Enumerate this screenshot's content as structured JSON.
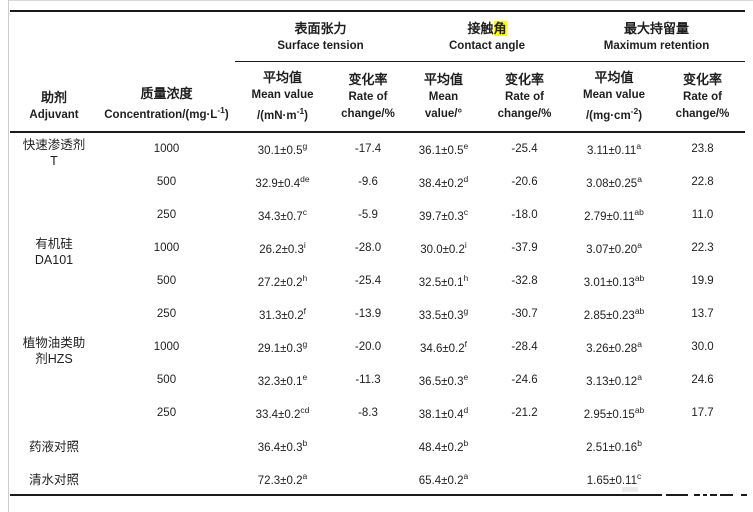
{
  "page": {
    "background": "#ffffff",
    "text_color": "#1f1f1f",
    "rule_color": "#1a1a1a",
    "highlight_color": "#ffff00"
  },
  "table": {
    "header": {
      "adjuvant_zh": "助剂",
      "adjuvant_en": "Adjuvant",
      "concentration_zh": "质量浓度",
      "concentration_en_main": "Concentration/(mg·L",
      "concentration_en_sup": "-1",
      "concentration_en_close": ")",
      "groups": {
        "surface_tension": {
          "zh": "表面张力",
          "en": "Surface tension",
          "mean_zh": "平均值",
          "mean_en_line1": "Mean value",
          "mean_en_line2_main": "/(mN·m",
          "mean_en_line2_sup": "-1",
          "mean_en_line2_close": ")",
          "rate_zh": "变化率",
          "rate_en_line1": "Rate of",
          "rate_en_line2": "change/%"
        },
        "contact_angle": {
          "zh_plain": "接触",
          "zh_highlighted": "角",
          "en": "Contact angle",
          "mean_zh": "平均值",
          "mean_en_line1": "Mean",
          "mean_en_line2": "value/°",
          "rate_zh": "变化率",
          "rate_en_line1": "Rate of",
          "rate_en_line2": "change/%"
        },
        "max_retention": {
          "zh": "最大持留量",
          "en": "Maximum retention",
          "mean_zh": "平均值",
          "mean_en_line1": "Mean value",
          "mean_en_line2_main": "/(mg·cm",
          "mean_en_line2_sup": "-2",
          "mean_en_line2_close": ")",
          "rate_zh": "变化率",
          "rate_en_line1": "Rate of",
          "rate_en_line2": "change/%"
        }
      }
    },
    "rows": [
      {
        "adjuvant": [
          "快速渗透剂",
          "T"
        ],
        "group_size": 3,
        "concentration": "1000",
        "st_mean": {
          "v": "30.1±0.5",
          "s": "g"
        },
        "st_rate": "-17.4",
        "ca_mean": {
          "v": "36.1±0.5",
          "s": "e"
        },
        "ca_rate": "-25.4",
        "mr_mean": {
          "v": "3.11±0.11",
          "s": "a"
        },
        "mr_rate": "23.8"
      },
      {
        "concentration": "500",
        "st_mean": {
          "v": "32.9±0.4",
          "s": "de"
        },
        "st_rate": "-9.6",
        "ca_mean": {
          "v": "38.4±0.2",
          "s": "d"
        },
        "ca_rate": "-20.6",
        "mr_mean": {
          "v": "3.08±0.25",
          "s": "a"
        },
        "mr_rate": "22.8"
      },
      {
        "concentration": "250",
        "st_mean": {
          "v": "34.3±0.7",
          "s": "c"
        },
        "st_rate": "-5.9",
        "ca_mean": {
          "v": "39.7±0.3",
          "s": "c"
        },
        "ca_rate": "-18.0",
        "mr_mean": {
          "v": "2.79±0.11",
          "s": "ab"
        },
        "mr_rate": "11.0"
      },
      {
        "adjuvant": [
          "有机硅",
          "DA101"
        ],
        "group_size": 3,
        "concentration": "1000",
        "st_mean": {
          "v": "26.2±0.3",
          "s": "i"
        },
        "st_rate": "-28.0",
        "ca_mean": {
          "v": "30.0±0.2",
          "s": "i"
        },
        "ca_rate": "-37.9",
        "mr_mean": {
          "v": "3.07±0.20",
          "s": "a"
        },
        "mr_rate": "22.3"
      },
      {
        "concentration": "500",
        "st_mean": {
          "v": "27.2±0.2",
          "s": "h"
        },
        "st_rate": "-25.4",
        "ca_mean": {
          "v": "32.5±0.1",
          "s": "h"
        },
        "ca_rate": "-32.8",
        "mr_mean": {
          "v": "3.01±0.13",
          "s": "ab"
        },
        "mr_rate": "19.9"
      },
      {
        "concentration": "250",
        "st_mean": {
          "v": "31.3±0.2",
          "s": "f"
        },
        "st_rate": "-13.9",
        "ca_mean": {
          "v": "33.5±0.3",
          "s": "g"
        },
        "ca_rate": "-30.7",
        "mr_mean": {
          "v": "2.85±0.23",
          "s": "ab"
        },
        "mr_rate": "13.7"
      },
      {
        "adjuvant": [
          "植物油类助",
          "剂HZS"
        ],
        "group_size": 3,
        "concentration": "1000",
        "st_mean": {
          "v": "29.1±0.3",
          "s": "g"
        },
        "st_rate": "-20.0",
        "ca_mean": {
          "v": "34.6±0.2",
          "s": "f"
        },
        "ca_rate": "-28.4",
        "mr_mean": {
          "v": "3.26±0.28",
          "s": "a"
        },
        "mr_rate": "30.0"
      },
      {
        "concentration": "500",
        "st_mean": {
          "v": "32.3±0.1",
          "s": "e"
        },
        "st_rate": "-11.3",
        "ca_mean": {
          "v": "36.5±0.3",
          "s": "e"
        },
        "ca_rate": "-24.6",
        "mr_mean": {
          "v": "3.13±0.12",
          "s": "a"
        },
        "mr_rate": "24.6"
      },
      {
        "concentration": "250",
        "st_mean": {
          "v": "33.4±0.2",
          "s": "cd"
        },
        "st_rate": "-8.3",
        "ca_mean": {
          "v": "38.1±0.4",
          "s": "d"
        },
        "ca_rate": "-21.2",
        "mr_mean": {
          "v": "2.95±0.15",
          "s": "ab"
        },
        "mr_rate": "17.7"
      },
      {
        "adjuvant": [
          "药液对照"
        ],
        "group_size": 1,
        "concentration": "",
        "st_mean": {
          "v": "36.4±0.3",
          "s": "b"
        },
        "st_rate": "",
        "ca_mean": {
          "v": "48.4±0.2",
          "s": "b"
        },
        "ca_rate": "",
        "mr_mean": {
          "v": "2.51±0.16",
          "s": "b"
        },
        "mr_rate": ""
      },
      {
        "adjuvant": [
          "清水对照"
        ],
        "group_size": 1,
        "concentration": "",
        "st_mean": {
          "v": "72.3±0.2",
          "s": "a"
        },
        "st_rate": "",
        "ca_mean": {
          "v": "65.4±0.2",
          "s": "a"
        },
        "ca_rate": "",
        "mr_mean": {
          "v": "1.65±0.11",
          "s": "c"
        },
        "mr_rate": ""
      }
    ]
  }
}
